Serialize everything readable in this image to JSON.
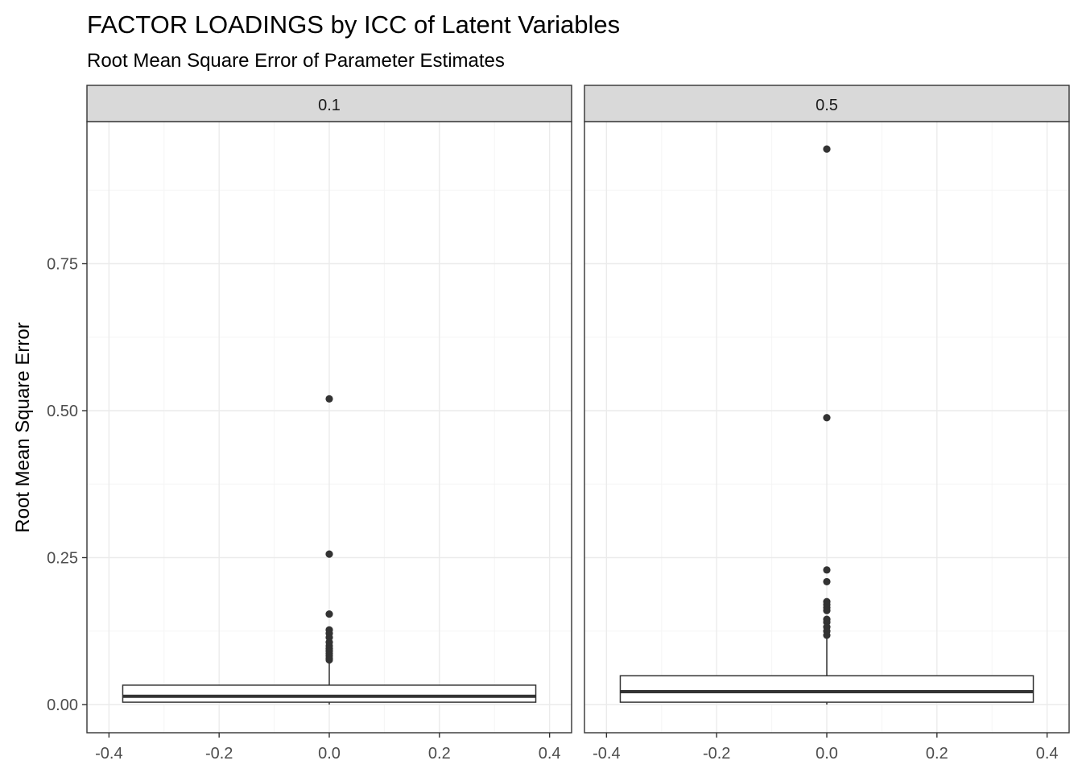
{
  "chart_data": {
    "type": "boxplot",
    "title": "FACTOR LOADINGS by ICC of Latent Variables",
    "subtitle": "Root Mean Square Error of Parameter Estimates",
    "xlabel": "",
    "ylabel": "Root Mean Square Error",
    "xlim": [
      -0.4,
      0.4
    ],
    "ylim": [
      0,
      1.0
    ],
    "x_ticks": [
      "-0.4",
      "-0.2",
      "0.0",
      "0.2",
      "0.4"
    ],
    "y_ticks": [
      "0.00",
      "0.25",
      "0.50",
      "0.75"
    ],
    "grid": true,
    "colors": {
      "box_fill": "#ffffff",
      "box_line": "#333333",
      "outlier": "#333333",
      "strip_fill": "#d9d9d9",
      "grid_major": "#ebebeb",
      "grid_minor": "#f5f5f5"
    },
    "panels": [
      {
        "strip": "0.1",
        "box": {
          "xmin": -0.375,
          "xmax": 0.375,
          "q1": 0.004,
          "median": 0.014,
          "q3": 0.033,
          "whisker_low": 0.0,
          "whisker_high": 0.075
        },
        "outliers": [
          0.52,
          0.256,
          0.154,
          0.127,
          0.121,
          0.114,
          0.106,
          0.1,
          0.095,
          0.091,
          0.087,
          0.083,
          0.079,
          0.076
        ]
      },
      {
        "strip": "0.5",
        "box": {
          "xmin": -0.375,
          "xmax": 0.375,
          "q1": 0.004,
          "median": 0.022,
          "q3": 0.049,
          "whisker_low": 0.0,
          "whisker_high": 0.115
        },
        "outliers": [
          0.945,
          0.488,
          0.229,
          0.209,
          0.175,
          0.17,
          0.165,
          0.16,
          0.145,
          0.14,
          0.132,
          0.125,
          0.118
        ]
      }
    ]
  }
}
